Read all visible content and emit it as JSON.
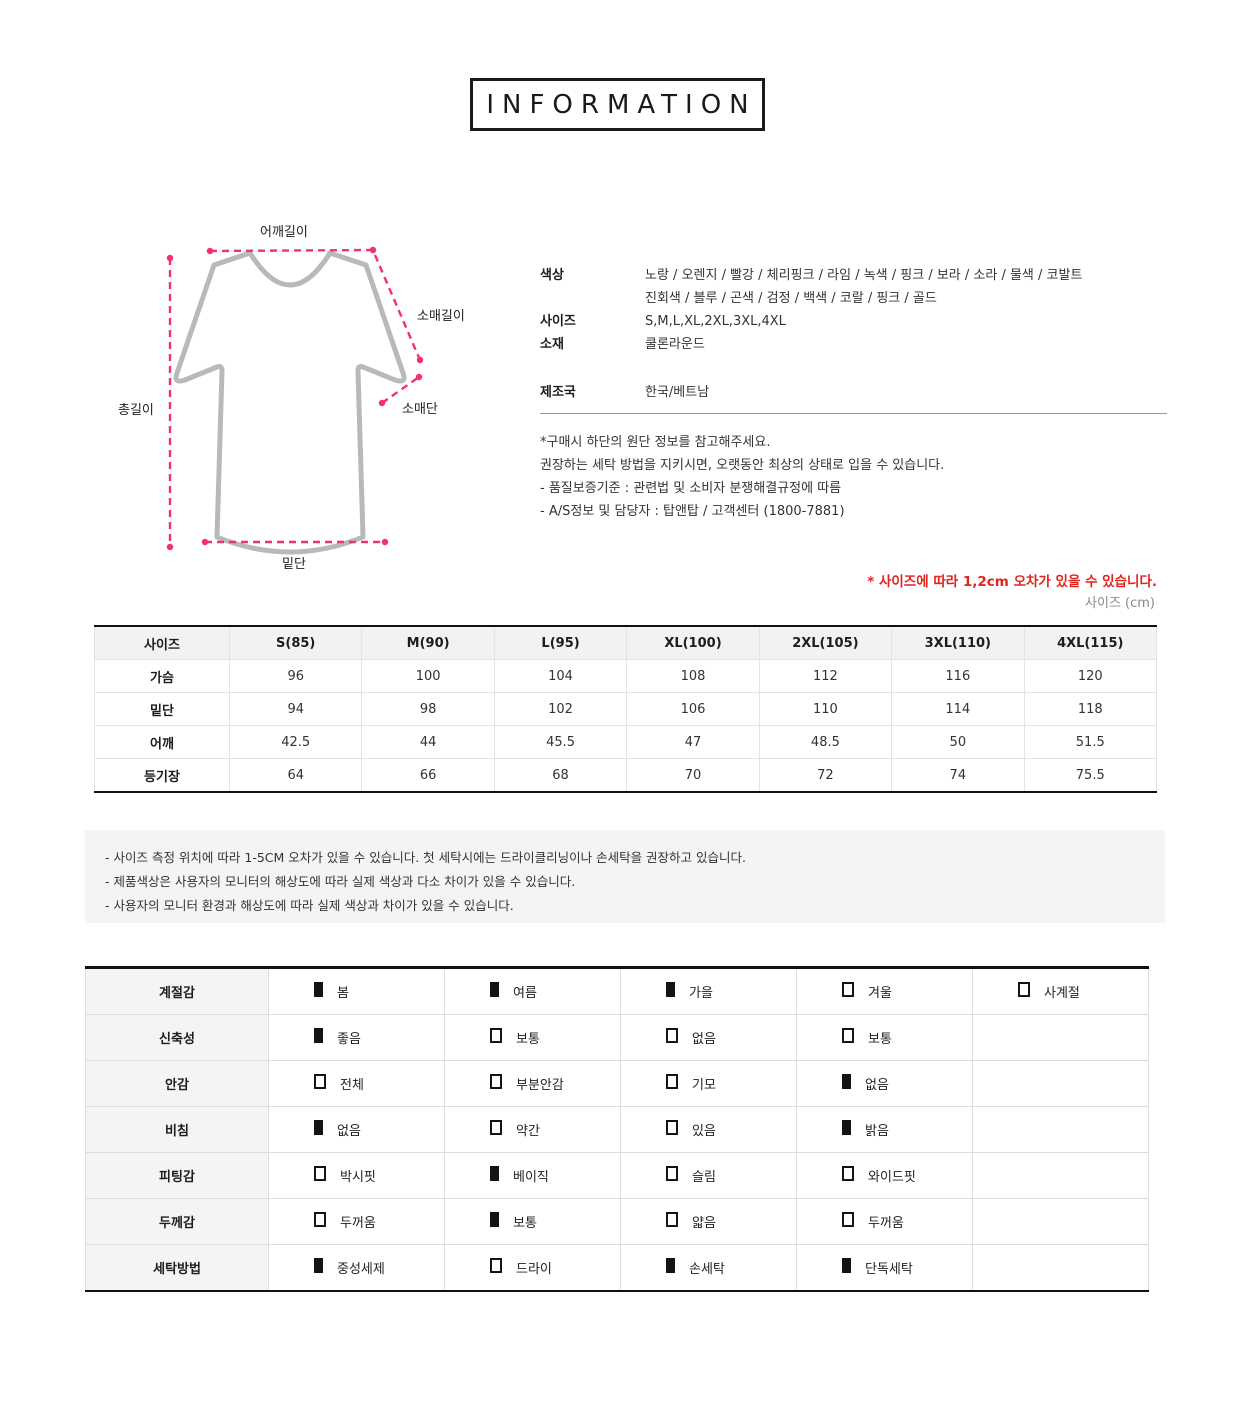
{
  "header": {
    "title": "INFORMATION"
  },
  "diagram": {
    "labels": {
      "shoulder": "어깨길이",
      "sleeve_length": "소매길이",
      "sleeve_cuff": "소매단",
      "total_length": "총길이",
      "hem": "밑단"
    },
    "colors": {
      "dash": "#f43169",
      "outline": "#b9b9b9"
    }
  },
  "specs": {
    "rows": [
      {
        "label": "색상",
        "lines": [
          "노랑 / 오렌지 / 빨강 / 체리핑크 / 라임 / 녹색 / 핑크 / 보라 / 소라 / 물색 / 코발트",
          "진회색 / 블루 / 곤색 / 검정 / 백색 / 코랄 / 핑크 / 골드"
        ]
      },
      {
        "label": "사이즈",
        "lines": [
          "S,M,L,XL,2XL,3XL,4XL"
        ]
      },
      {
        "label": "소재",
        "lines": [
          "쿨론라운드"
        ]
      },
      {
        "label": "제조국",
        "lines": [
          "한국/베트남"
        ]
      }
    ],
    "notes": [
      "*구매시 하단의 원단 정보를 참고해주세요.",
      "권장하는 세탁 방법을 지키시면, 오랫동안 최상의 상태로 입을 수 있습니다.",
      "- 품질보증기준 : 관련법 및 소비자 분쟁해결규정에 따름",
      "- A/S정보 및 담당자 : 탑앤탑 / 고객센터 (1800-7881)"
    ]
  },
  "size_note": {
    "warning": "* 사이즈에 따라 1,2cm 오차가 있을 수 있습니다.",
    "warning_color": "#e2241c",
    "unit": "사이즈 (cm)"
  },
  "size_table": {
    "headers": [
      "사이즈",
      "S(85)",
      "M(90)",
      "L(95)",
      "XL(100)",
      "2XL(105)",
      "3XL(110)",
      "4XL(115)"
    ],
    "rows": [
      {
        "label": "가슴",
        "values": [
          "96",
          "100",
          "104",
          "108",
          "112",
          "116",
          "120"
        ]
      },
      {
        "label": "밑단",
        "values": [
          "94",
          "98",
          "102",
          "106",
          "110",
          "114",
          "118"
        ]
      },
      {
        "label": "어깨",
        "values": [
          "42.5",
          "44",
          "45.5",
          "47",
          "48.5",
          "50",
          "51.5"
        ]
      },
      {
        "label": "등기장",
        "values": [
          "64",
          "66",
          "68",
          "70",
          "72",
          "74",
          "75.5"
        ]
      }
    ]
  },
  "notice_box": {
    "lines": [
      "- 사이즈 측정 위치에 따라 1-5CM 오차가 있을 수 있습니다. 첫 세탁시에는 드라이클리닝이나 손세탁을 권장하고 있습니다.",
      "- 제품색상은 사용자의 모니터의 해상도에 따라 실제 색상과 다소 차이가 있을 수 있습니다.",
      "- 사용자의 모니터 환경과 해상도에 따라 실제 색상과 차이가 있을 수 있습니다."
    ]
  },
  "attr_table": {
    "columns": 5,
    "rows": [
      {
        "label": "계절감",
        "options": [
          {
            "checked": true,
            "label": "봄"
          },
          {
            "checked": true,
            "label": "여름"
          },
          {
            "checked": true,
            "label": "가을"
          },
          {
            "checked": false,
            "label": "겨울"
          },
          {
            "checked": false,
            "label": "사계절"
          }
        ]
      },
      {
        "label": "신축성",
        "options": [
          {
            "checked": true,
            "label": "좋음"
          },
          {
            "checked": false,
            "label": "보통"
          },
          {
            "checked": false,
            "label": "없음"
          },
          {
            "checked": false,
            "label": "보통"
          }
        ]
      },
      {
        "label": "안감",
        "options": [
          {
            "checked": false,
            "label": "전체"
          },
          {
            "checked": false,
            "label": "부분안감"
          },
          {
            "checked": false,
            "label": "기모"
          },
          {
            "checked": true,
            "label": "없음"
          }
        ]
      },
      {
        "label": "비침",
        "options": [
          {
            "checked": true,
            "label": "없음"
          },
          {
            "checked": false,
            "label": "약간"
          },
          {
            "checked": false,
            "label": "있음"
          },
          {
            "checked": true,
            "label": "밝음"
          }
        ]
      },
      {
        "label": "피팅감",
        "options": [
          {
            "checked": false,
            "label": "박시핏"
          },
          {
            "checked": true,
            "label": "베이직"
          },
          {
            "checked": false,
            "label": "슬림"
          },
          {
            "checked": false,
            "label": "와이드핏"
          }
        ]
      },
      {
        "label": "두께감",
        "options": [
          {
            "checked": false,
            "label": "두꺼움"
          },
          {
            "checked": true,
            "label": "보통"
          },
          {
            "checked": false,
            "label": "얇음"
          },
          {
            "checked": false,
            "label": "두꺼움"
          }
        ]
      },
      {
        "label": "세탁방법",
        "options": [
          {
            "checked": true,
            "label": "중성세제"
          },
          {
            "checked": false,
            "label": "드라이"
          },
          {
            "checked": true,
            "label": "손세탁"
          },
          {
            "checked": true,
            "label": "단독세탁"
          }
        ]
      }
    ]
  }
}
